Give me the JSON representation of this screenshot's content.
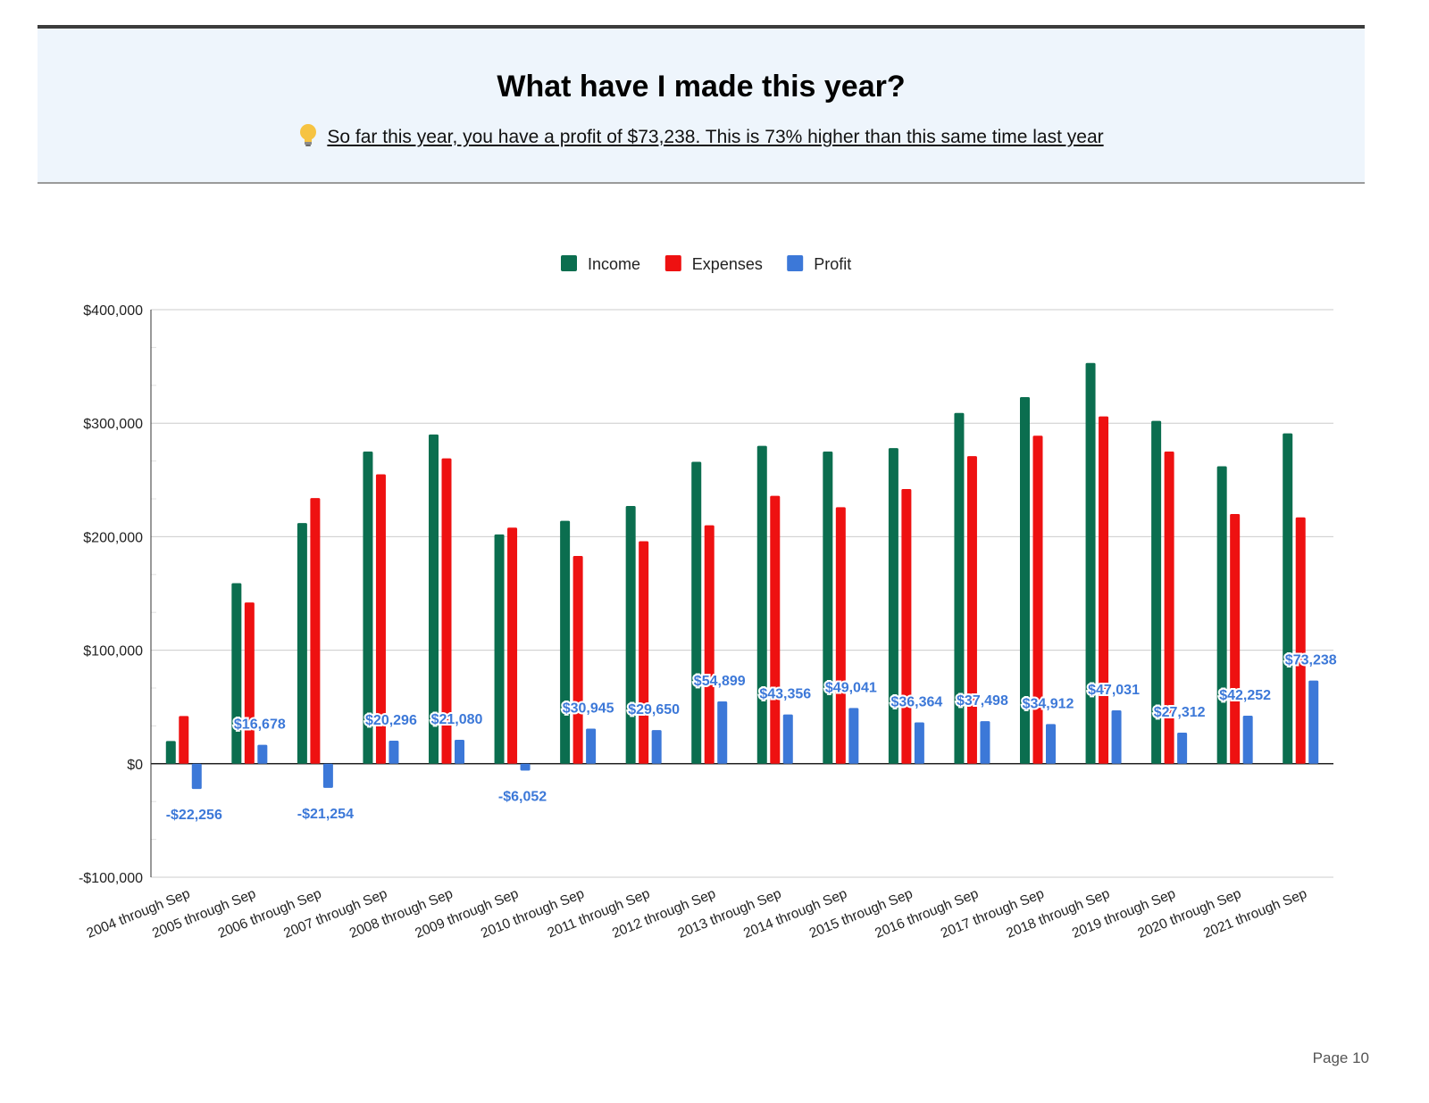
{
  "header": {
    "title": "What have I made this year?",
    "bulb_icon": "lightbulb-icon",
    "subtitle": "So far this year, you have a profit of $73,238. This is 73% higher than this same time last year"
  },
  "footer": {
    "page_label": "Page 10"
  },
  "chart_data": {
    "type": "bar",
    "title": "",
    "xlabel": "",
    "ylabel": "",
    "ylim": [
      -100000,
      400000
    ],
    "y_ticks": [
      400000,
      300000,
      200000,
      100000,
      0,
      -100000
    ],
    "y_tick_labels": [
      "$400,000",
      "$300,000",
      "$200,000",
      "$100,000",
      "$0",
      "-$100,000"
    ],
    "grid": true,
    "legend_position": "top",
    "categories": [
      "2004 through Sep",
      "2005 through Sep",
      "2006 through Sep",
      "2007 through Sep",
      "2008 through Sep",
      "2009 through Sep",
      "2010 through Sep",
      "2011 through Sep",
      "2012 through Sep",
      "2013 through Sep",
      "2014 through Sep",
      "2015 through Sep",
      "2016 through Sep",
      "2017 through Sep",
      "2018 through Sep",
      "2019 through Sep",
      "2020 through Sep",
      "2021 through Sep"
    ],
    "series": [
      {
        "name": "Income",
        "color": "#0b6e4f",
        "values": [
          20000,
          159000,
          212000,
          275000,
          290000,
          202000,
          214000,
          227000,
          266000,
          280000,
          275000,
          278000,
          309000,
          323000,
          353000,
          302000,
          262000,
          291000
        ]
      },
      {
        "name": "Expenses",
        "color": "#ee1111",
        "values": [
          42000,
          142000,
          234000,
          255000,
          269000,
          208000,
          183000,
          196000,
          210000,
          236000,
          226000,
          242000,
          271000,
          289000,
          306000,
          275000,
          220000,
          217000
        ]
      },
      {
        "name": "Profit",
        "color": "#3c78d8",
        "values": [
          -22256,
          16678,
          -21254,
          20296,
          21080,
          -6052,
          30945,
          29650,
          54899,
          43356,
          49041,
          36364,
          37498,
          34912,
          47031,
          27312,
          42252,
          73238
        ],
        "labels": [
          "-$22,256",
          "$16,678",
          "-$21,254",
          "$20,296",
          "$21,080",
          "-$6,052",
          "$30,945",
          "$29,650",
          "$54,899",
          "$43,356",
          "$49,041",
          "$36,364",
          "$37,498",
          "$34,912",
          "$47,031",
          "$27,312",
          "$42,252",
          "$73,238"
        ]
      }
    ]
  }
}
